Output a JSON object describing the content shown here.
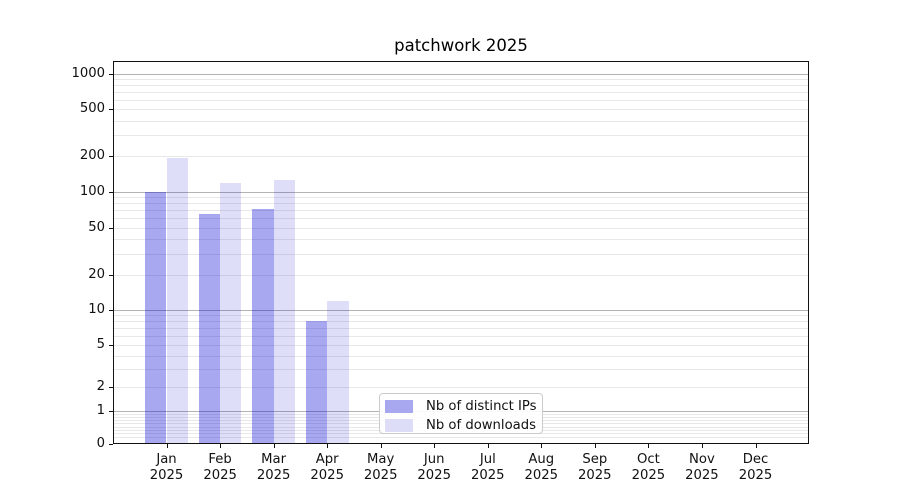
{
  "chart_data": {
    "type": "bar",
    "title": "patchwork 2025",
    "x_categories": [
      {
        "month": "Jan",
        "year": "2025"
      },
      {
        "month": "Feb",
        "year": "2025"
      },
      {
        "month": "Mar",
        "year": "2025"
      },
      {
        "month": "Apr",
        "year": "2025"
      },
      {
        "month": "May",
        "year": "2025"
      },
      {
        "month": "Jun",
        "year": "2025"
      },
      {
        "month": "Jul",
        "year": "2025"
      },
      {
        "month": "Aug",
        "year": "2025"
      },
      {
        "month": "Sep",
        "year": "2025"
      },
      {
        "month": "Oct",
        "year": "2025"
      },
      {
        "month": "Nov",
        "year": "2025"
      },
      {
        "month": "Dec",
        "year": "2025"
      }
    ],
    "series": [
      {
        "name": "Nb of distinct IPs",
        "color": "#a8a8f1",
        "fill": "rgba(5,5,212,0.35)",
        "values": [
          100,
          65,
          72,
          8,
          0,
          0,
          0,
          0,
          0,
          0,
          0,
          0
        ]
      },
      {
        "name": "Nb of downloads",
        "color": "#ddddf8",
        "fill": "rgba(5,5,212,0.135)",
        "values": [
          195,
          120,
          125,
          12,
          0,
          0,
          0,
          0,
          0,
          0,
          0,
          0
        ]
      }
    ],
    "y_axis": {
      "scale": "asinh",
      "ticks": [
        0,
        1,
        2,
        5,
        10,
        20,
        50,
        100,
        200,
        500,
        1000
      ],
      "top": 1000
    },
    "grid": {
      "major_values": [
        1,
        10,
        100,
        1000
      ],
      "major_color": "#b3b3b3",
      "minor_color": "#e8e8e8"
    },
    "legend": {
      "position": "lower-center"
    }
  }
}
